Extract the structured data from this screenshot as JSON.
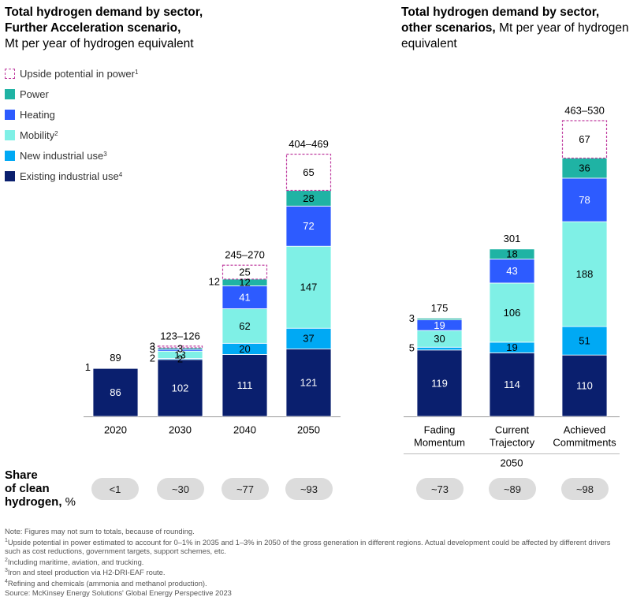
{
  "titles": {
    "left_bold": "Total hydrogen demand by sector, Further Acceleration scenario,",
    "left_sub": "Mt per year of hydrogen equivalent",
    "right_bold": "Total hydrogen demand by sector, other scenarios,",
    "right_sub": "Mt per year of hydrogen equivalent"
  },
  "legend": [
    {
      "label": "Upside potential in power",
      "sup": "1",
      "color": "#c03fa0",
      "dashed": true
    },
    {
      "label": "Power",
      "sup": "",
      "color": "#1fb3a4",
      "dashed": false
    },
    {
      "label": "Heating",
      "sup": "",
      "color": "#2d5bff",
      "dashed": false
    },
    {
      "label": "Mobility",
      "sup": "2",
      "color": "#7ff0e6",
      "dashed": false
    },
    {
      "label": "New industrial use",
      "sup": "3",
      "color": "#00a9f4",
      "dashed": false
    },
    {
      "label": "Existing industrial use",
      "sup": "4",
      "color": "#0a1f6e",
      "dashed": false
    }
  ],
  "chart_data": [
    {
      "type": "bar",
      "stacked": true,
      "title": "Total hydrogen demand by sector, Further Acceleration scenario, Mt per year of hydrogen equivalent",
      "categories": [
        "2020",
        "2030",
        "2040",
        "2050"
      ],
      "series": [
        {
          "name": "Existing industrial use",
          "values": [
            86,
            102,
            111,
            121
          ]
        },
        {
          "name": "New industrial use",
          "values": [
            0,
            2,
            20,
            37
          ]
        },
        {
          "name": "Mobility",
          "values": [
            1,
            13,
            62,
            147
          ]
        },
        {
          "name": "Heating",
          "values": [
            0,
            3,
            41,
            72
          ]
        },
        {
          "name": "Power",
          "values": [
            0,
            3,
            12,
            28
          ]
        },
        {
          "name": "Upside potential in power",
          "values": [
            0,
            3,
            25,
            65
          ]
        }
      ],
      "totals": [
        "89",
        "123–126",
        "245–270",
        "404–469"
      ],
      "value_labels": [
        [
          "86",
          "",
          "",
          "",
          "",
          ""
        ],
        [
          "102",
          "2",
          "13",
          "3",
          "3",
          ""
        ],
        [
          "111",
          "20",
          "62",
          "41",
          "12",
          "25"
        ],
        [
          "121",
          "37",
          "147",
          "72",
          "28",
          "65"
        ]
      ],
      "outside_labels": [
        [
          {
            "label": "1",
            "series": 2
          }
        ],
        [
          {
            "label": "2",
            "series": 1
          },
          {
            "label": "3",
            "series": 3
          },
          {
            "label": "3",
            "series": 5
          }
        ],
        [
          {
            "label": "12",
            "series": 4
          }
        ],
        []
      ]
    },
    {
      "type": "bar",
      "stacked": true,
      "title": "Total hydrogen demand by sector, other scenarios, Mt per year of hydrogen equivalent",
      "categories": [
        "Fading Momentum",
        "Current Trajectory",
        "Achieved Commitments"
      ],
      "group_label": "2050",
      "series": [
        {
          "name": "Existing industrial use",
          "values": [
            119,
            114,
            110
          ]
        },
        {
          "name": "New industrial use",
          "values": [
            5,
            19,
            51
          ]
        },
        {
          "name": "Mobility",
          "values": [
            30,
            106,
            188
          ]
        },
        {
          "name": "Heating",
          "values": [
            19,
            43,
            78
          ]
        },
        {
          "name": "Power",
          "values": [
            3,
            18,
            36
          ]
        },
        {
          "name": "Upside potential in power",
          "values": [
            0,
            0,
            67
          ]
        }
      ],
      "totals": [
        "175",
        "301",
        "463–530"
      ],
      "value_labels": [
        [
          "119",
          "",
          "30",
          "19",
          "",
          ""
        ],
        [
          "114",
          "19",
          "106",
          "43",
          "18",
          ""
        ],
        [
          "110",
          "51",
          "188",
          "78",
          "36",
          "67"
        ]
      ],
      "outside_labels": [
        [
          {
            "label": "5",
            "series": 1
          },
          {
            "label": "3",
            "series": 4
          }
        ],
        [],
        []
      ]
    }
  ],
  "share": {
    "label_line1": "Share",
    "label_line2": "of clean",
    "label_line3": "hydrogen,",
    "unit": " %",
    "left_values": [
      "<1",
      "~30",
      "~77",
      "~93"
    ],
    "right_values": [
      "~73",
      "~89",
      "~98"
    ]
  },
  "notes": {
    "note": "Note: Figures may not sum to totals, because of rounding.",
    "fn1": "Upside potential in power estimated to account for 0–1% in 2035 and 1–3% in 2050 of the gross generation in different regions. Actual development could be affected by different drivers such as cost reductions, government targets, support schemes, etc.",
    "fn2": "Including maritime, aviation, and trucking.",
    "fn3": "Iron and steel production via H2-DRI-EAF route.",
    "fn4": "Refining and chemicals (ammonia and methanol production).",
    "source": "Source: McKinsey Energy Solutions' Global Energy Perspective 2023"
  }
}
